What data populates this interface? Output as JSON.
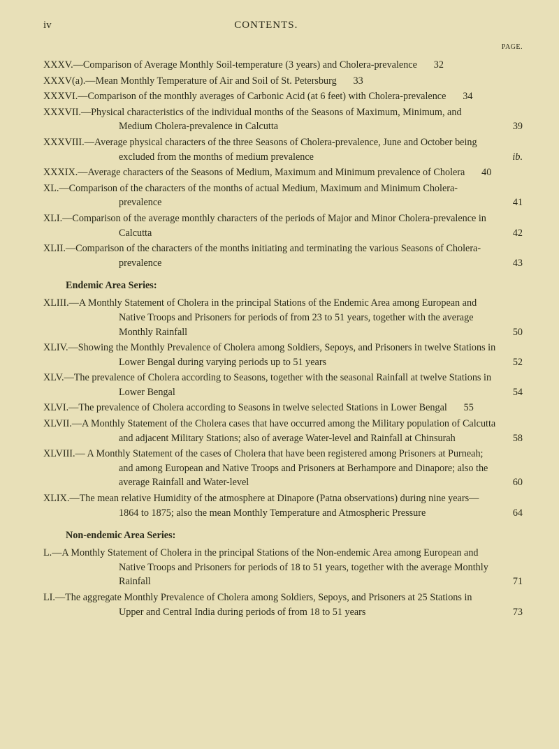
{
  "header": {
    "page_num": "iv",
    "title": "CONTENTS.",
    "page_label": "PAGE."
  },
  "sections": [
    {
      "entries": [
        {
          "label": "XXXV.",
          "text": "—Comparison of Average Monthly Soil-temperature (3 years) and Cholera-prevalence",
          "page": "32"
        },
        {
          "label": "XXXV(a).",
          "text": "—Mean Monthly Temperature of Air and Soil of St. Petersburg",
          "page": "33"
        },
        {
          "label": "XXXVI.",
          "text": "—Comparison of the monthly averages of Carbonic Acid (at 6 feet) with Cholera-prevalence",
          "page": "34"
        },
        {
          "label": "XXXVII.",
          "text": "—Physical characteristics of the individual months of the Seasons of Maximum, Minimum, and Medium Cholera-prevalence in Calcutta",
          "page": "39"
        },
        {
          "label": "XXXVIII.",
          "text": "—Average physical characters of the three Seasons of Cholera-prevalence, June and October being excluded from the months of medium prevalence",
          "page": "ib.",
          "page_italic": true
        },
        {
          "label": "XXXIX.",
          "text": "—Average characters of the Seasons of Medium, Maximum and Minimum prevalence of Cholera",
          "page": "40"
        },
        {
          "label": "XL.",
          "text": "—Comparison of the characters of the months of actual Medium, Maximum and Minimum Cholera-prevalence",
          "page": "41"
        },
        {
          "label": "XLI.",
          "text": "—Comparison of the average monthly characters of the periods of Major and Minor Cholera-prevalence in Calcutta",
          "page": "42"
        },
        {
          "label": "XLII.",
          "text": "—Comparison of the characters of the months initiating and terminating the various Seasons of Cholera-prevalence",
          "page": "43"
        }
      ]
    },
    {
      "heading": "Endemic Area Series:",
      "entries": [
        {
          "label": "XLIII.",
          "text": "—A Monthly Statement of Cholera in the principal Stations of the Endemic Area among European and Native Troops and Prisoners for periods of from 23 to 51 years, together with the average Monthly Rainfall",
          "page": "50"
        },
        {
          "label": "XLIV.",
          "text": "—Showing the Monthly Prevalence of Cholera among Soldiers, Sepoys, and Prisoners in twelve Stations in Lower Bengal during varying periods up to 51 years",
          "page": "52"
        },
        {
          "label": "XLV.",
          "text": "—The prevalence of Cholera according to Seasons, together with the seasonal Rainfall at twelve Stations in Lower Bengal",
          "page": "54"
        },
        {
          "label": "XLVI.",
          "text": "—The prevalence of Cholera according to Seasons in twelve selected Stations in Lower Bengal",
          "page": "55"
        },
        {
          "label": "XLVII.",
          "text": "—A Monthly Statement of the Cholera cases that have occurred among the Military population of Calcutta and adjacent Military Stations; also of average Water-level and Rainfall at Chinsurah",
          "page": "58"
        },
        {
          "label": "XLVIII.",
          "text": "— A Monthly Statement of the cases of Cholera that have been registered among Prisoners at Purneah; and among European and Native Troops and Prisoners at Berhampore and Dinapore; also the average Rainfall and Water-level",
          "page": "60"
        },
        {
          "label": "XLIX.",
          "text": "—The mean relative Humidity of the atmosphere at Dinapore (Patna observations) during nine years—1864 to 1875; also the mean Monthly Temperature and Atmospheric Pressure",
          "page": "64"
        }
      ]
    },
    {
      "heading": "Non-endemic Area Series:",
      "entries": [
        {
          "label": "L.",
          "text": "—A Monthly Statement of Cholera in the principal Stations of the Non-endemic Area among European and Native Troops and Prisoners for periods of 18 to 51 years, together with the average Monthly Rainfall",
          "page": "71"
        },
        {
          "label": "LI.",
          "text": "—The aggregate Monthly Prevalence of Cholera among Soldiers, Sepoys, and Prisoners at 25 Stations in Upper and Central India during periods of from 18 to 51 years",
          "page": "73"
        }
      ]
    }
  ]
}
